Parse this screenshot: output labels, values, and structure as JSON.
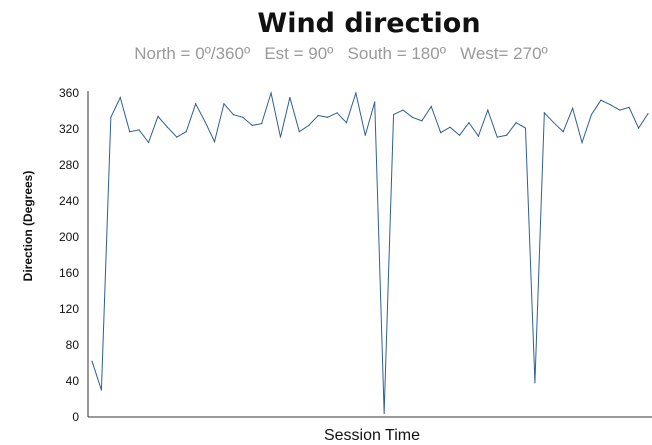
{
  "chart_data": {
    "type": "line",
    "title": "Wind direction",
    "subtitle": "North = 0º/360º   Est = 90º   South = 180º   West= 270º",
    "xlabel": "Session Time",
    "ylabel": "Direction (Degrees)",
    "ylim": [
      0,
      360
    ],
    "yticks": [
      0,
      40,
      80,
      120,
      160,
      200,
      240,
      280,
      320,
      360
    ],
    "grid": false,
    "colors": {
      "series": "#2f5f96",
      "subtitle": "#9a9a9a"
    },
    "series": [
      {
        "values": [
          62,
          30,
          333,
          355,
          317,
          319,
          305,
          334,
          322,
          311,
          317,
          348,
          328,
          306,
          348,
          336,
          333,
          324,
          326,
          360,
          311,
          355,
          317,
          324,
          335,
          333,
          338,
          327,
          360,
          313,
          350,
          4,
          336,
          341,
          333,
          329,
          345,
          316,
          322,
          313,
          327,
          312,
          341,
          311,
          313,
          327,
          321,
          38,
          338,
          327,
          317,
          343,
          305,
          336,
          352,
          347,
          341,
          344,
          321,
          337
        ]
      }
    ]
  }
}
